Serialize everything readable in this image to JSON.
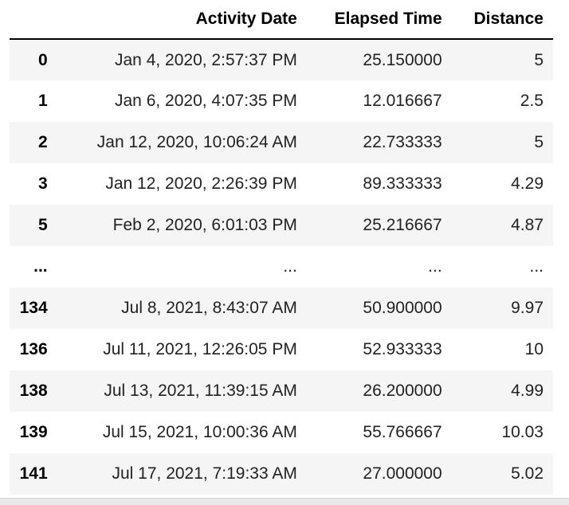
{
  "table": {
    "index_header": "",
    "columns": [
      "Activity Date",
      "Elapsed Time",
      "Distance"
    ],
    "rows": [
      {
        "index": "0",
        "activity_date": "Jan 4, 2020, 2:57:37 PM",
        "elapsed_time": "25.150000",
        "distance": "5"
      },
      {
        "index": "1",
        "activity_date": "Jan 6, 2020, 4:07:35 PM",
        "elapsed_time": "12.016667",
        "distance": "2.5"
      },
      {
        "index": "2",
        "activity_date": "Jan 12, 2020, 10:06:24 AM",
        "elapsed_time": "22.733333",
        "distance": "5"
      },
      {
        "index": "3",
        "activity_date": "Jan 12, 2020, 2:26:39 PM",
        "elapsed_time": "89.333333",
        "distance": "4.29"
      },
      {
        "index": "5",
        "activity_date": "Feb 2, 2020, 6:01:03 PM",
        "elapsed_time": "25.216667",
        "distance": "4.87"
      },
      {
        "index": "...",
        "activity_date": "...",
        "elapsed_time": "...",
        "distance": "..."
      },
      {
        "index": "134",
        "activity_date": "Jul 8, 2021, 8:43:07 AM",
        "elapsed_time": "50.900000",
        "distance": "9.97"
      },
      {
        "index": "136",
        "activity_date": "Jul 11, 2021, 12:26:05 PM",
        "elapsed_time": "52.933333",
        "distance": "10"
      },
      {
        "index": "138",
        "activity_date": "Jul 13, 2021, 11:39:15 AM",
        "elapsed_time": "26.200000",
        "distance": "4.99"
      },
      {
        "index": "139",
        "activity_date": "Jul 15, 2021, 10:00:36 AM",
        "elapsed_time": "55.766667",
        "distance": "10.03"
      },
      {
        "index": "141",
        "activity_date": "Jul 17, 2021, 7:19:33 AM",
        "elapsed_time": "27.000000",
        "distance": "5.02"
      }
    ]
  }
}
